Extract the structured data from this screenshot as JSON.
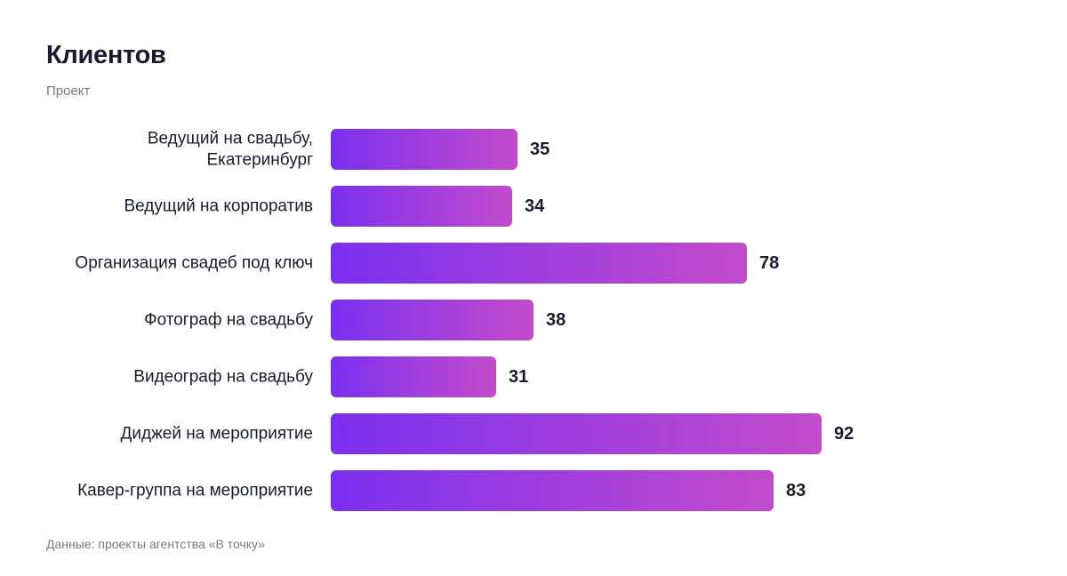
{
  "chart_data": {
    "type": "bar",
    "orientation": "horizontal",
    "title": "Клиентов",
    "subtitle": "Проект",
    "source": "Данные: проекты агентства «В точку»",
    "categories": [
      [
        "Ведущий на свадьбу,",
        "Екатеринбург"
      ],
      [
        "Ведущий на корпоратив"
      ],
      [
        "Организация свадеб под ключ"
      ],
      [
        "Фотограф на свадьбу"
      ],
      [
        "Видеограф на свадьбу"
      ],
      [
        "Диджей на мероприятие"
      ],
      [
        "Кавер-группа на мероприятие"
      ]
    ],
    "values": [
      35,
      34,
      78,
      38,
      31,
      92,
      83
    ],
    "xlim": [
      0,
      100
    ],
    "grid": false,
    "legend": "none",
    "colors": {
      "bar_gradient_start": "#7b30f0",
      "bar_gradient_end": "#c34bcb",
      "text": "#1b1b2f",
      "muted_text": "#7a7a86"
    }
  }
}
